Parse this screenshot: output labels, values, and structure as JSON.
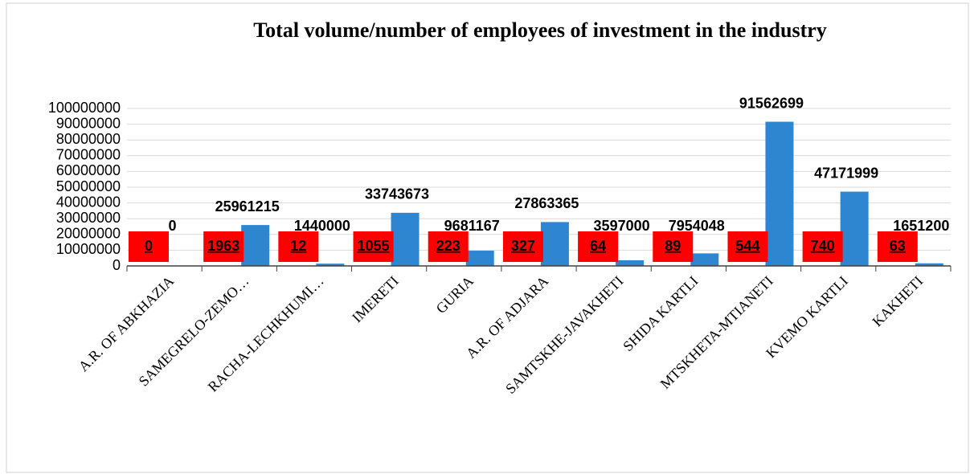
{
  "chart_data": {
    "type": "bar",
    "title": "Total volume/number of employees of investment in the industry",
    "categories": [
      "A.R. OF ABKHAZIA",
      "SAMEGRELO-ZEMO…",
      "RACHA-LECHKHUMI…",
      "IMERETI",
      "GURIA",
      "A.R. OF ADJARA",
      "SAMTSKHE-JAVAKHETI",
      "SHIDA KARTLI",
      "MTSKHETA-MTIANETI",
      "KVEMO KARTLI",
      "KAKHETI"
    ],
    "series": [
      {
        "color": "#ff0000",
        "values": [
          0,
          1963,
          12,
          1055,
          223,
          327,
          64,
          89,
          544,
          740,
          63
        ]
      },
      {
        "color": "#2e86d0",
        "values": [
          0,
          25961215,
          1440000,
          33743673,
          9681167,
          27863365,
          3597000,
          7954048,
          91562699,
          47171999,
          1651200
        ]
      }
    ],
    "ylim": [
      0,
      100000000
    ],
    "yticks": [
      0,
      10000000,
      20000000,
      30000000,
      40000000,
      50000000,
      60000000,
      70000000,
      80000000,
      90000000,
      100000000
    ],
    "grid": true
  }
}
